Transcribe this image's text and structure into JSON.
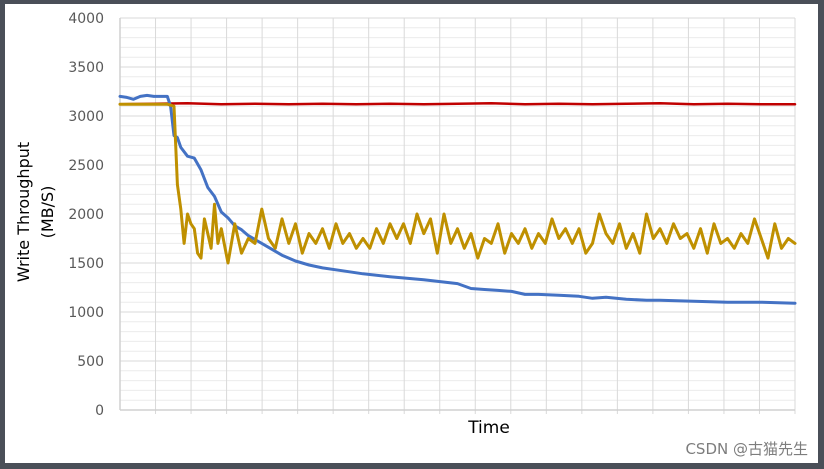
{
  "chart_data": {
    "type": "line",
    "title": "",
    "xlabel": "Time",
    "ylabel_line1": "Write Throughput",
    "ylabel_line2": "(MB/S)",
    "ylabel": "Write Throughput (MB/S)",
    "ylim": [
      0,
      4000
    ],
    "yticks": [
      0,
      500,
      1000,
      1500,
      2000,
      2500,
      3000,
      3500,
      4000
    ],
    "ytick_labels": [
      "0",
      "500",
      "1000",
      "1500",
      "2000",
      "2500",
      "3000",
      "3500",
      "4000"
    ],
    "minor_grid_step": 100,
    "x_grid_count": 19,
    "grid": true,
    "legend": null,
    "xlim": [
      0,
      100
    ],
    "series": [
      {
        "name": "red-steady",
        "color": "#c00000",
        "x": [
          0,
          5,
          10,
          15,
          20,
          25,
          30,
          35,
          40,
          45,
          50,
          55,
          60,
          65,
          70,
          75,
          80,
          85,
          90,
          95,
          100
        ],
        "values": [
          3120,
          3125,
          3130,
          3120,
          3125,
          3120,
          3125,
          3120,
          3125,
          3120,
          3125,
          3130,
          3120,
          3125,
          3120,
          3125,
          3130,
          3120,
          3125,
          3120,
          3120
        ]
      },
      {
        "name": "blue-decay",
        "color": "#4472c4",
        "x": [
          0,
          1,
          2,
          3,
          4,
          5,
          6,
          7,
          7.5,
          8,
          8.5,
          9,
          10,
          11,
          12,
          13,
          14,
          15,
          16,
          17,
          18,
          19,
          20,
          22,
          24,
          26,
          28,
          30,
          33,
          36,
          40,
          45,
          50,
          52,
          54,
          56,
          58,
          60,
          62,
          65,
          68,
          70,
          72,
          75,
          78,
          80,
          85,
          90,
          95,
          100
        ],
        "values": [
          3200,
          3190,
          3170,
          3200,
          3210,
          3200,
          3200,
          3200,
          3100,
          2800,
          2780,
          2680,
          2590,
          2570,
          2450,
          2270,
          2180,
          2020,
          1960,
          1880,
          1840,
          1780,
          1740,
          1660,
          1580,
          1520,
          1480,
          1450,
          1420,
          1390,
          1360,
          1330,
          1290,
          1240,
          1230,
          1220,
          1210,
          1180,
          1180,
          1170,
          1160,
          1140,
          1150,
          1130,
          1120,
          1120,
          1110,
          1100,
          1100,
          1090
        ]
      },
      {
        "name": "gold-noisy",
        "color": "#bf9000",
        "x": [
          0,
          7,
          8,
          8.5,
          9,
          9.5,
          10,
          10.5,
          11,
          11.5,
          12,
          12.5,
          13,
          13.5,
          14,
          14.5,
          15,
          16,
          17,
          18,
          19,
          20,
          21,
          22,
          23,
          24,
          25,
          26,
          27,
          28,
          29,
          30,
          31,
          32,
          33,
          34,
          35,
          36,
          37,
          38,
          39,
          40,
          41,
          42,
          43,
          44,
          45,
          46,
          47,
          48,
          49,
          50,
          51,
          52,
          53,
          54,
          55,
          56,
          57,
          58,
          59,
          60,
          61,
          62,
          63,
          64,
          65,
          66,
          67,
          68,
          69,
          70,
          71,
          72,
          73,
          74,
          75,
          76,
          77,
          78,
          79,
          80,
          81,
          82,
          83,
          84,
          85,
          86,
          87,
          88,
          89,
          90,
          91,
          92,
          93,
          94,
          95,
          96,
          97,
          98,
          99,
          100
        ],
        "values": [
          3120,
          3120,
          3100,
          2300,
          2050,
          1700,
          2000,
          1900,
          1850,
          1600,
          1550,
          1950,
          1800,
          1650,
          2100,
          1700,
          1850,
          1500,
          1900,
          1600,
          1750,
          1700,
          2050,
          1750,
          1650,
          1950,
          1700,
          1900,
          1600,
          1800,
          1700,
          1850,
          1650,
          1900,
          1700,
          1800,
          1650,
          1750,
          1650,
          1850,
          1700,
          1900,
          1750,
          1900,
          1700,
          2000,
          1800,
          1950,
          1600,
          2000,
          1700,
          1850,
          1650,
          1800,
          1550,
          1750,
          1700,
          1900,
          1600,
          1800,
          1700,
          1850,
          1650,
          1800,
          1700,
          1950,
          1750,
          1850,
          1700,
          1850,
          1600,
          1700,
          2000,
          1800,
          1700,
          1900,
          1650,
          1800,
          1600,
          2000,
          1750,
          1850,
          1700,
          1900,
          1750,
          1800,
          1650,
          1850,
          1600,
          1900,
          1700,
          1750,
          1650,
          1800,
          1700,
          1950,
          1750,
          1550,
          1900,
          1650,
          1750,
          1700
        ]
      }
    ]
  },
  "watermark": "CSDN @古猫先生"
}
